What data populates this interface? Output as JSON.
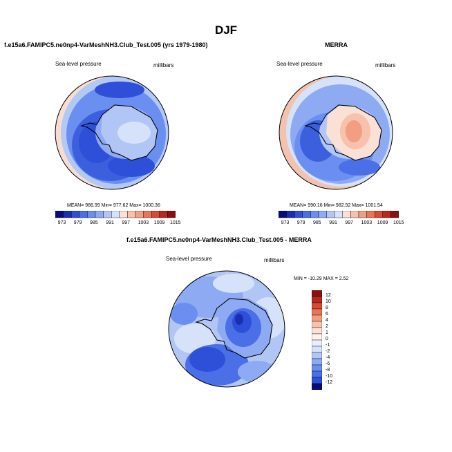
{
  "figure": {
    "title": "DJF"
  },
  "panels": [
    {
      "title": "f.e15a6.FAMIPC5.ne0np4-VarMeshNH3.Club_Test.005 (yrs 1979-1980)",
      "left_label": "Sea-level pressure",
      "right_label": "millibars",
      "stats": "MEAN= 986.99  Min= 977.62  Max= 1000.36",
      "colorbar": {
        "ticks": [
          "973",
          "979",
          "985",
          "991",
          "997",
          "1003",
          "1009",
          "1015"
        ],
        "colors": [
          "#0a0a7a",
          "#1a2fb0",
          "#2e4fd8",
          "#4a6fe6",
          "#6a8ff0",
          "#8eaaf3",
          "#b2c6f6",
          "#d6e2fa",
          "#fbe0d6",
          "#f7c1ac",
          "#f19e82",
          "#e97558",
          "#d94a33",
          "#b52a1e",
          "#8c1010"
        ]
      }
    },
    {
      "title": "MERRA",
      "left_label": "Sea-level pressure",
      "right_label": "millibars",
      "stats": "MEAN= 990.16  Min= 982.92  Max= 1001.54",
      "colorbar": {
        "ticks": [
          "973",
          "979",
          "985",
          "991",
          "997",
          "1003",
          "1009",
          "1015"
        ],
        "colors": [
          "#0a0a7a",
          "#1a2fb0",
          "#2e4fd8",
          "#4a6fe6",
          "#6a8ff0",
          "#8eaaf3",
          "#b2c6f6",
          "#d6e2fa",
          "#fbe0d6",
          "#f7c1ac",
          "#f19e82",
          "#e97558",
          "#d94a33",
          "#b52a1e",
          "#8c1010"
        ]
      }
    },
    {
      "title": "f.e15a6.FAMIPC5.ne0np4-VarMeshNH3.Club_Test.005 - MERRA",
      "left_label": "Sea-level pressure",
      "right_label": "millibars",
      "stats": "MIN = -10.29 MAX =   2.52",
      "colorbar": {
        "ticks": [
          "12",
          "10",
          "8",
          "6",
          "4",
          "2",
          "1",
          "0",
          "-1",
          "-2",
          "-4",
          "-6",
          "-8",
          "-10",
          "-12"
        ],
        "colors": [
          "#8c1010",
          "#b52a1e",
          "#d94a33",
          "#e97558",
          "#f19e82",
          "#f7c1ac",
          "#fbe0d6",
          "#fdf3ee",
          "#e8eefc",
          "#d6e2fa",
          "#b2c6f6",
          "#8eaaf3",
          "#6a8ff0",
          "#4a6fe6",
          "#2e4fd8",
          "#0a0a7a"
        ]
      }
    }
  ]
}
